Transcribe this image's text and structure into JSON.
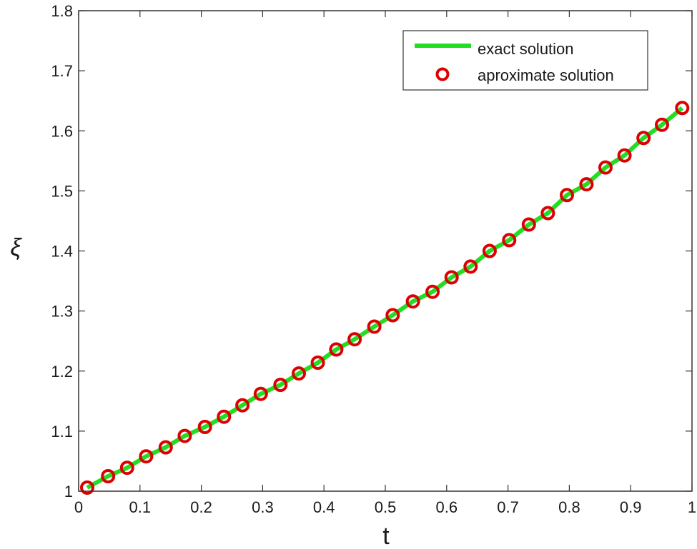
{
  "chart_data": {
    "type": "line",
    "title": "",
    "xlabel": "t",
    "ylabel": "ξ",
    "xlim": [
      0,
      1
    ],
    "ylim": [
      1,
      1.8
    ],
    "x_ticks": [
      "0",
      "0.1",
      "0.2",
      "0.3",
      "0.4",
      "0.5",
      "0.6",
      "0.7",
      "0.8",
      "0.9",
      "1"
    ],
    "y_ticks": [
      "1",
      "1.1",
      "1.2",
      "1.3",
      "1.4",
      "1.5",
      "1.6",
      "1.7",
      "1.8"
    ],
    "grid": false,
    "legend_position": "upper right",
    "x": [
      0.014,
      0.048,
      0.079,
      0.11,
      0.142,
      0.173,
      0.206,
      0.237,
      0.267,
      0.297,
      0.329,
      0.359,
      0.39,
      0.42,
      0.45,
      0.482,
      0.512,
      0.545,
      0.577,
      0.608,
      0.639,
      0.67,
      0.702,
      0.734,
      0.765,
      0.796,
      0.828,
      0.859,
      0.89,
      0.921,
      0.951,
      0.984
    ],
    "series": [
      {
        "name": "exact solution",
        "style": "line",
        "color": "#22dd22",
        "values": [
          1.006,
          1.025,
          1.039,
          1.058,
          1.073,
          1.092,
          1.107,
          1.124,
          1.143,
          1.162,
          1.177,
          1.196,
          1.214,
          1.236,
          1.253,
          1.274,
          1.293,
          1.316,
          1.332,
          1.356,
          1.374,
          1.4,
          1.418,
          1.444,
          1.463,
          1.493,
          1.511,
          1.539,
          1.559,
          1.588,
          1.61,
          1.638
        ]
      },
      {
        "name": "aproximate solution",
        "style": "marker-circle",
        "color": "#dd0000",
        "values": [
          1.006,
          1.025,
          1.039,
          1.058,
          1.073,
          1.092,
          1.107,
          1.124,
          1.143,
          1.162,
          1.177,
          1.196,
          1.214,
          1.236,
          1.253,
          1.274,
          1.293,
          1.316,
          1.332,
          1.356,
          1.374,
          1.4,
          1.418,
          1.444,
          1.463,
          1.493,
          1.511,
          1.539,
          1.559,
          1.588,
          1.61,
          1.638
        ]
      }
    ]
  },
  "legend": {
    "items": [
      {
        "label": "exact solution",
        "symbol": "line",
        "color": "#22dd22"
      },
      {
        "label": "aproximate solution",
        "symbol": "circle",
        "color": "#dd0000"
      }
    ]
  },
  "axes": {
    "xlabel": "t",
    "ylabel": "ξ"
  }
}
